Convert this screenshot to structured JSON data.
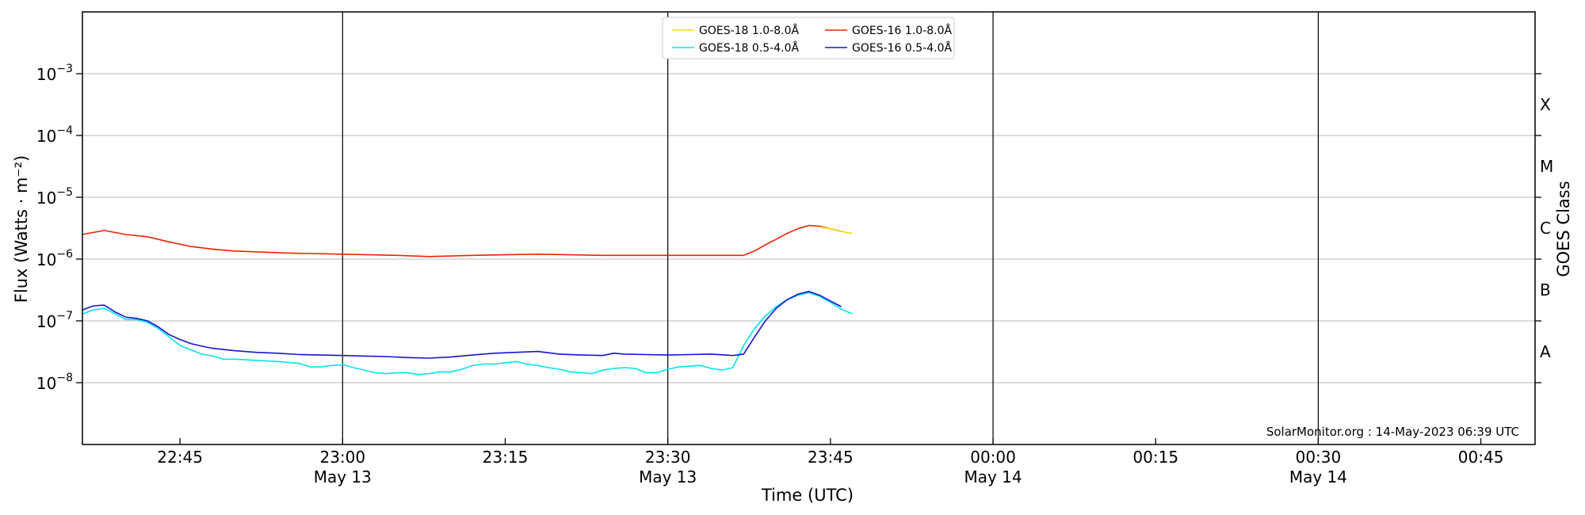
{
  "chart_data": {
    "type": "line",
    "y_scale": "log",
    "ylim": [
      1e-09,
      0.01
    ],
    "xlim": [
      "2023-05-13T22:36:00",
      "2023-05-14T00:50:00"
    ],
    "ylabel": "Flux (Watts · m⁻²)",
    "xlabel": "Time (UTC)",
    "right_axis_label": "GOES Class",
    "grid": "horizontal",
    "legend_position": "top-center",
    "y_ticks": [
      {
        "value": 1e-08,
        "base": "10",
        "exp": "−8"
      },
      {
        "value": 1e-07,
        "base": "10",
        "exp": "−7"
      },
      {
        "value": 1e-06,
        "base": "10",
        "exp": "−6"
      },
      {
        "value": 1e-05,
        "base": "10",
        "exp": "−5"
      },
      {
        "value": 0.0001,
        "base": "10",
        "exp": "−4"
      },
      {
        "value": 0.001,
        "base": "10",
        "exp": "−3"
      }
    ],
    "x_ticks": [
      {
        "time": "2023-05-13T22:45:00",
        "label": "22:45",
        "date": "",
        "major": false
      },
      {
        "time": "2023-05-13T23:00:00",
        "label": "23:00",
        "date": "May 13",
        "major": true
      },
      {
        "time": "2023-05-13T23:15:00",
        "label": "23:15",
        "date": "",
        "major": false
      },
      {
        "time": "2023-05-13T23:30:00",
        "label": "23:30",
        "date": "May 13",
        "major": true
      },
      {
        "time": "2023-05-13T23:45:00",
        "label": "23:45",
        "date": "",
        "major": false
      },
      {
        "time": "2023-05-14T00:00:00",
        "label": "00:00",
        "date": "May 14",
        "major": true
      },
      {
        "time": "2023-05-14T00:15:00",
        "label": "00:15",
        "date": "",
        "major": false
      },
      {
        "time": "2023-05-14T00:30:00",
        "label": "00:30",
        "date": "May 14",
        "major": true
      },
      {
        "time": "2023-05-14T00:45:00",
        "label": "00:45",
        "date": "",
        "major": false
      }
    ],
    "goes_classes": [
      {
        "label": "X",
        "low": 0.0001,
        "high": 0.001
      },
      {
        "label": "M",
        "low": 1e-05,
        "high": 0.0001
      },
      {
        "label": "C",
        "low": 1e-06,
        "high": 1e-05
      },
      {
        "label": "B",
        "low": 1e-07,
        "high": 1e-06
      },
      {
        "label": "A",
        "low": 1e-08,
        "high": 1e-07
      }
    ],
    "series": [
      {
        "name": "GOES-18 1.0-8.0Å",
        "color": "#ffd700",
        "x": [
          "2023-05-13T23:44:00",
          "2023-05-13T23:45:00",
          "2023-05-13T23:46:00",
          "2023-05-13T23:47:00"
        ],
        "y": [
          3.3e-06,
          3.1e-06,
          2.8e-06,
          2.6e-06
        ]
      },
      {
        "name": "GOES-18 0.5-4.0Å",
        "color": "#00e5ee",
        "x": [
          "2023-05-13T22:36:00",
          "2023-05-13T22:37:00",
          "2023-05-13T22:38:00",
          "2023-05-13T22:39:00",
          "2023-05-13T22:40:00",
          "2023-05-13T22:41:00",
          "2023-05-13T22:42:00",
          "2023-05-13T22:43:00",
          "2023-05-13T22:44:00",
          "2023-05-13T22:45:00",
          "2023-05-13T22:46:00",
          "2023-05-13T22:47:00",
          "2023-05-13T22:48:00",
          "2023-05-13T22:49:00",
          "2023-05-13T22:50:00",
          "2023-05-13T22:52:00",
          "2023-05-13T22:54:00",
          "2023-05-13T22:56:00",
          "2023-05-13T22:57:00",
          "2023-05-13T22:58:00",
          "2023-05-13T22:59:00",
          "2023-05-13T23:00:00",
          "2023-05-13T23:01:00",
          "2023-05-13T23:02:00",
          "2023-05-13T23:03:00",
          "2023-05-13T23:04:00",
          "2023-05-13T23:05:00",
          "2023-05-13T23:06:00",
          "2023-05-13T23:07:00",
          "2023-05-13T23:08:00",
          "2023-05-13T23:09:00",
          "2023-05-13T23:10:00",
          "2023-05-13T23:11:00",
          "2023-05-13T23:12:00",
          "2023-05-13T23:13:00",
          "2023-05-13T23:14:00",
          "2023-05-13T23:15:00",
          "2023-05-13T23:16:00",
          "2023-05-13T23:17:00",
          "2023-05-13T23:18:00",
          "2023-05-13T23:19:00",
          "2023-05-13T23:20:00",
          "2023-05-13T23:21:00",
          "2023-05-13T23:22:00",
          "2023-05-13T23:23:00",
          "2023-05-13T23:24:00",
          "2023-05-13T23:25:00",
          "2023-05-13T23:26:00",
          "2023-05-13T23:27:00",
          "2023-05-13T23:28:00",
          "2023-05-13T23:29:00",
          "2023-05-13T23:30:00",
          "2023-05-13T23:31:00",
          "2023-05-13T23:32:00",
          "2023-05-13T23:33:00",
          "2023-05-13T23:34:00",
          "2023-05-13T23:35:00",
          "2023-05-13T23:36:00",
          "2023-05-13T23:37:00",
          "2023-05-13T23:38:00",
          "2023-05-13T23:39:00",
          "2023-05-13T23:40:00",
          "2023-05-13T23:41:00",
          "2023-05-13T23:42:00",
          "2023-05-13T23:43:00",
          "2023-05-13T23:44:00",
          "2023-05-13T23:45:00",
          "2023-05-13T23:46:00",
          "2023-05-13T23:47:00"
        ],
        "y": [
          1.3e-07,
          1.5e-07,
          1.6e-07,
          1.3e-07,
          1.05e-07,
          1.05e-07,
          9.5e-08,
          7.5e-08,
          5.5e-08,
          4e-08,
          3.4e-08,
          2.9e-08,
          2.7e-08,
          2.4e-08,
          2.4e-08,
          2.3e-08,
          2.2e-08,
          2.05e-08,
          1.8e-08,
          1.8e-08,
          1.9e-08,
          1.95e-08,
          1.75e-08,
          1.6e-08,
          1.45e-08,
          1.4e-08,
          1.45e-08,
          1.45e-08,
          1.35e-08,
          1.4e-08,
          1.5e-08,
          1.5e-08,
          1.65e-08,
          1.9e-08,
          2e-08,
          2e-08,
          2.1e-08,
          2.2e-08,
          2e-08,
          1.9e-08,
          1.75e-08,
          1.65e-08,
          1.5e-08,
          1.45e-08,
          1.4e-08,
          1.6e-08,
          1.7e-08,
          1.75e-08,
          1.7e-08,
          1.45e-08,
          1.45e-08,
          1.65e-08,
          1.8e-08,
          1.85e-08,
          1.9e-08,
          1.7e-08,
          1.6e-08,
          1.75e-08,
          4e-08,
          7.5e-08,
          1.2e-07,
          1.7e-07,
          2.2e-07,
          2.6e-07,
          2.85e-07,
          2.5e-07,
          2e-07,
          1.55e-07,
          1.3e-07
        ]
      },
      {
        "name": "GOES-16 1.0-8.0Å",
        "color": "#ee2200",
        "x": [
          "2023-05-13T22:36:00",
          "2023-05-13T22:37:00",
          "2023-05-13T22:38:00",
          "2023-05-13T22:39:00",
          "2023-05-13T22:40:00",
          "2023-05-13T22:42:00",
          "2023-05-13T22:44:00",
          "2023-05-13T22:46:00",
          "2023-05-13T22:48:00",
          "2023-05-13T22:50:00",
          "2023-05-13T22:55:00",
          "2023-05-13T23:00:00",
          "2023-05-13T23:05:00",
          "2023-05-13T23:08:00",
          "2023-05-13T23:12:00",
          "2023-05-13T23:18:00",
          "2023-05-13T23:24:00",
          "2023-05-13T23:30:00",
          "2023-05-13T23:34:00",
          "2023-05-13T23:37:00",
          "2023-05-13T23:38:00",
          "2023-05-13T23:39:00",
          "2023-05-13T23:40:00",
          "2023-05-13T23:41:00",
          "2023-05-13T23:42:00",
          "2023-05-13T23:43:00",
          "2023-05-13T23:44:00",
          "2023-05-13T23:45:00",
          "2023-05-13T23:46:00"
        ],
        "y": [
          2.5e-06,
          2.7e-06,
          2.9e-06,
          2.7e-06,
          2.5e-06,
          2.3e-06,
          1.9e-06,
          1.6e-06,
          1.45e-06,
          1.35e-06,
          1.25e-06,
          1.2e-06,
          1.15e-06,
          1.1e-06,
          1.15e-06,
          1.2e-06,
          1.15e-06,
          1.15e-06,
          1.15e-06,
          1.15e-06,
          1.35e-06,
          1.7e-06,
          2.1e-06,
          2.6e-06,
          3.1e-06,
          3.5e-06,
          3.4e-06,
          3.1e-06,
          2.8e-06
        ]
      },
      {
        "name": "GOES-16 0.5-4.0Å",
        "color": "#1515d0",
        "x": [
          "2023-05-13T22:36:00",
          "2023-05-13T22:37:00",
          "2023-05-13T22:38:00",
          "2023-05-13T22:39:00",
          "2023-05-13T22:40:00",
          "2023-05-13T22:41:00",
          "2023-05-13T22:42:00",
          "2023-05-13T22:43:00",
          "2023-05-13T22:44:00",
          "2023-05-13T22:45:00",
          "2023-05-13T22:46:00",
          "2023-05-13T22:47:00",
          "2023-05-13T22:48:00",
          "2023-05-13T22:50:00",
          "2023-05-13T22:52:00",
          "2023-05-13T22:54:00",
          "2023-05-13T22:56:00",
          "2023-05-13T22:58:00",
          "2023-05-13T23:00:00",
          "2023-05-13T23:02:00",
          "2023-05-13T23:04:00",
          "2023-05-13T23:06:00",
          "2023-05-13T23:08:00",
          "2023-05-13T23:10:00",
          "2023-05-13T23:12:00",
          "2023-05-13T23:14:00",
          "2023-05-13T23:16:00",
          "2023-05-13T23:18:00",
          "2023-05-13T23:20:00",
          "2023-05-13T23:22:00",
          "2023-05-13T23:24:00",
          "2023-05-13T23:25:00",
          "2023-05-13T23:26:00",
          "2023-05-13T23:28:00",
          "2023-05-13T23:30:00",
          "2023-05-13T23:32:00",
          "2023-05-13T23:34:00",
          "2023-05-13T23:36:00",
          "2023-05-13T23:37:00",
          "2023-05-13T23:38:00",
          "2023-05-13T23:39:00",
          "2023-05-13T23:40:00",
          "2023-05-13T23:41:00",
          "2023-05-13T23:42:00",
          "2023-05-13T23:43:00",
          "2023-05-13T23:44:00",
          "2023-05-13T23:45:00",
          "2023-05-13T23:46:00"
        ],
        "y": [
          1.5e-07,
          1.75e-07,
          1.8e-07,
          1.4e-07,
          1.15e-07,
          1.1e-07,
          1e-07,
          8e-08,
          6e-08,
          5e-08,
          4.3e-08,
          3.9e-08,
          3.6e-08,
          3.3e-08,
          3.1e-08,
          3e-08,
          2.85e-08,
          2.8e-08,
          2.75e-08,
          2.7e-08,
          2.65e-08,
          2.55e-08,
          2.5e-08,
          2.6e-08,
          2.8e-08,
          3e-08,
          3.1e-08,
          3.2e-08,
          2.9e-08,
          2.8e-08,
          2.75e-08,
          3e-08,
          2.9e-08,
          2.85e-08,
          2.8e-08,
          2.85e-08,
          2.9e-08,
          2.75e-08,
          2.9e-08,
          5.5e-08,
          1e-07,
          1.6e-07,
          2.2e-07,
          2.7e-07,
          3e-07,
          2.6e-07,
          2.1e-07,
          1.7e-07
        ]
      }
    ]
  },
  "credit": "SolarMonitor.org : 14-May-2023 06:39 UTC"
}
